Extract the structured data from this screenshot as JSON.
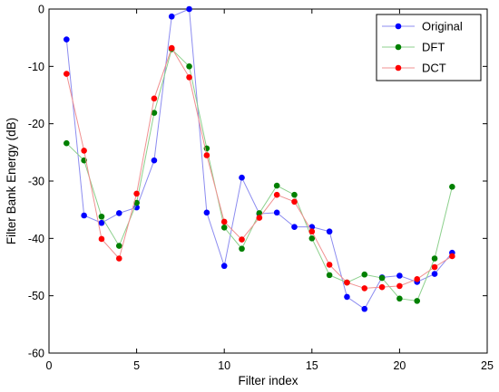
{
  "chart_data": {
    "type": "line",
    "xlabel": "Filter index",
    "ylabel": "Filter Bank Energy (dB)",
    "xlim": [
      0,
      25
    ],
    "ylim": [
      -60,
      0
    ],
    "xticks": [
      0,
      5,
      10,
      15,
      20,
      25
    ],
    "yticks": [
      0,
      -10,
      -20,
      -30,
      -40,
      -50,
      -60
    ],
    "xtick_labels": [
      "0",
      "5",
      "10",
      "15",
      "20",
      "25"
    ],
    "ytick_labels": [
      "0",
      "-10",
      "-20",
      "-30",
      "-40",
      "-50",
      "-60"
    ],
    "grid": false,
    "legend_position": "top-right",
    "x": [
      1,
      2,
      3,
      4,
      5,
      6,
      7,
      8,
      9,
      10,
      11,
      12,
      13,
      14,
      15,
      16,
      17,
      18,
      19,
      20,
      21,
      22,
      23
    ],
    "series": [
      {
        "name": "Original",
        "color": "#0000ff",
        "line_color": "#8c8cf0",
        "values": [
          -5.3,
          -36.0,
          -37.3,
          -35.6,
          -34.6,
          -26.4,
          -1.3,
          0.0,
          -35.5,
          -44.8,
          -29.4,
          -35.7,
          -35.5,
          -38.0,
          -38.0,
          -38.8,
          -50.2,
          -52.3,
          -46.8,
          -46.5,
          -47.6,
          -46.2,
          -42.5
        ]
      },
      {
        "name": "DFT",
        "color": "#008000",
        "line_color": "#8cd08c",
        "values": [
          -23.4,
          -26.4,
          -36.2,
          -41.3,
          -33.8,
          -18.1,
          -7.0,
          -10.0,
          -24.3,
          -38.1,
          -41.8,
          -35.6,
          -30.8,
          -32.4,
          -40.0,
          -46.4,
          -47.7,
          -46.3,
          -46.9,
          -50.5,
          -50.9,
          -43.5,
          -31.0
        ]
      },
      {
        "name": "DCT",
        "color": "#ff0000",
        "line_color": "#f09090",
        "values": [
          -11.3,
          -24.7,
          -40.1,
          -43.5,
          -32.2,
          -15.6,
          -6.8,
          -11.9,
          -25.5,
          -37.1,
          -40.2,
          -36.4,
          -32.4,
          -33.6,
          -38.8,
          -44.6,
          -47.7,
          -48.7,
          -48.5,
          -48.3,
          -47.1,
          -45.0,
          -43.1
        ]
      }
    ]
  }
}
